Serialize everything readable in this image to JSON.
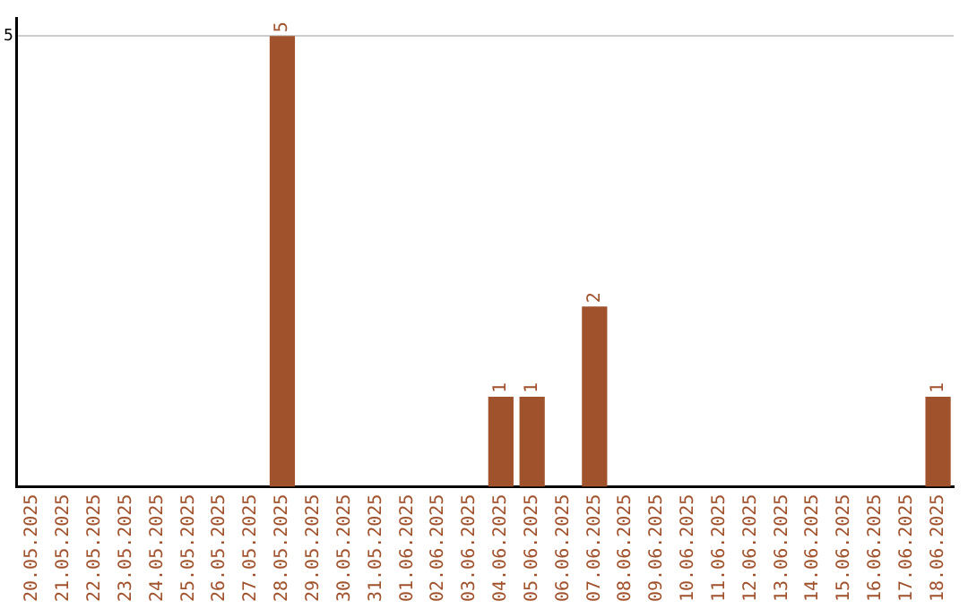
{
  "chart_data": {
    "type": "bar",
    "categories": [
      "20.05.2025",
      "21.05.2025",
      "22.05.2025",
      "23.05.2025",
      "24.05.2025",
      "25.05.2025",
      "26.05.2025",
      "27.05.2025",
      "28.05.2025",
      "29.05.2025",
      "30.05.2025",
      "31.05.2025",
      "01.06.2025",
      "02.06.2025",
      "03.06.2025",
      "04.06.2025",
      "05.06.2025",
      "06.06.2025",
      "07.06.2025",
      "08.06.2025",
      "09.06.2025",
      "10.06.2025",
      "11.06.2025",
      "12.06.2025",
      "13.06.2025",
      "14.06.2025",
      "15.06.2025",
      "16.06.2025",
      "17.06.2025",
      "18.06.2025"
    ],
    "values": [
      0,
      0,
      0,
      0,
      0,
      0,
      0,
      0,
      5,
      0,
      0,
      0,
      0,
      0,
      0,
      1,
      1,
      0,
      2,
      0,
      0,
      0,
      0,
      0,
      0,
      0,
      0,
      0,
      0,
      1
    ],
    "value_labels": [
      null,
      null,
      null,
      null,
      null,
      null,
      null,
      null,
      "5",
      null,
      null,
      null,
      null,
      null,
      null,
      "1",
      "1",
      null,
      "2",
      null,
      null,
      null,
      null,
      null,
      null,
      null,
      null,
      null,
      null,
      "1"
    ],
    "color": "#a0522d",
    "ylim": [
      0,
      5.2
    ],
    "yticks": [
      5
    ],
    "grid": "y",
    "legend": false
  }
}
